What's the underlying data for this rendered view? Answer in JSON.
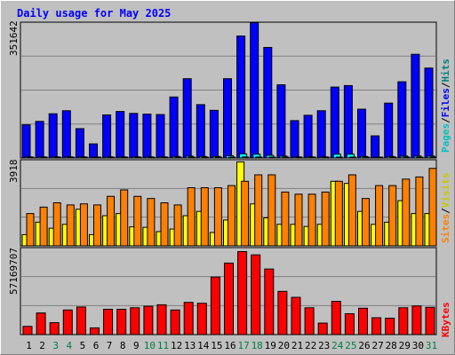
{
  "chart_data": [
    {
      "type": "bar",
      "title": "Daily usage for May 2025",
      "ylabel_parts": [
        "Pages",
        "Files",
        "Hits"
      ],
      "max_label": "351642",
      "ylim": [
        0,
        351642
      ],
      "categories": [
        "1",
        "2",
        "3",
        "4",
        "5",
        "6",
        "7",
        "8",
        "9",
        "10",
        "11",
        "12",
        "13",
        "14",
        "15",
        "16",
        "17",
        "18",
        "19",
        "20",
        "21",
        "22",
        "23",
        "24",
        "25",
        "26",
        "27",
        "28",
        "29",
        "30",
        "31"
      ],
      "weekend_days": [
        "3",
        "4",
        "10",
        "11",
        "17",
        "18",
        "24",
        "25",
        "31"
      ],
      "series": [
        {
          "name": "Hits",
          "color": "#0000ff",
          "values": [
            87000,
            96000,
            116000,
            124000,
            77000,
            37000,
            113000,
            122000,
            117000,
            115000,
            114000,
            160000,
            208000,
            140000,
            125000,
            208000,
            320000,
            355000,
            290000,
            192000,
            98000,
            112000,
            124000,
            186000,
            190000,
            128000,
            58000,
            144000,
            200000,
            272000,
            236000
          ]
        },
        {
          "name": "Files",
          "color": "#00ffff",
          "values": [
            3000,
            3000,
            3000,
            3000,
            3000,
            2000,
            3000,
            3000,
            3000,
            3000,
            3000,
            4000,
            5000,
            4000,
            4000,
            6000,
            11000,
            10000,
            7000,
            5000,
            3000,
            3000,
            3000,
            10000,
            10000,
            4000,
            2000,
            4000,
            5000,
            5000,
            5000
          ]
        },
        {
          "name": "Pages",
          "color": "#00c0c0",
          "values": [
            1000,
            1000,
            1000,
            1000,
            1000,
            500,
            1000,
            1000,
            1000,
            1000,
            1000,
            1000,
            1500,
            1000,
            1000,
            1500,
            2500,
            2500,
            2000,
            1500,
            1000,
            1000,
            1000,
            2000,
            2000,
            1000,
            500,
            1000,
            1500,
            1500,
            1500
          ]
        }
      ]
    },
    {
      "type": "bar",
      "ylabel_parts": [
        "Sites",
        "Visits"
      ],
      "max_label": "3918",
      "ylim": [
        0,
        3918
      ],
      "categories": [
        "1",
        "2",
        "3",
        "4",
        "5",
        "6",
        "7",
        "8",
        "9",
        "10",
        "11",
        "12",
        "13",
        "14",
        "15",
        "16",
        "17",
        "18",
        "19",
        "20",
        "21",
        "22",
        "23",
        "24",
        "25",
        "26",
        "27",
        "28",
        "29",
        "30",
        "31"
      ],
      "series": [
        {
          "name": "Visits",
          "color": "#ffff00",
          "values": [
            520,
            1100,
            820,
            1000,
            1700,
            520,
            1400,
            1500,
            880,
            860,
            660,
            780,
            1400,
            1600,
            620,
            1200,
            3900,
            1950,
            1300,
            1000,
            1000,
            900,
            1000,
            3000,
            2900,
            1600,
            1000,
            1100,
            2100,
            1500,
            1500
          ]
        },
        {
          "name": "Sites",
          "color": "#ff8000",
          "values": [
            1500,
            1800,
            2000,
            1900,
            1950,
            1900,
            2300,
            2600,
            2300,
            2200,
            2000,
            1900,
            2700,
            2700,
            2700,
            2800,
            3000,
            3300,
            3300,
            2500,
            2400,
            2400,
            2500,
            3000,
            3300,
            2200,
            2800,
            2800,
            3100,
            3200,
            3600
          ]
        }
      ]
    },
    {
      "type": "bar",
      "ylabel_parts": [
        "KBytes"
      ],
      "max_label": "57169707",
      "ylim": [
        0,
        57169707
      ],
      "categories": [
        "1",
        "2",
        "3",
        "4",
        "5",
        "6",
        "7",
        "8",
        "9",
        "10",
        "11",
        "12",
        "13",
        "14",
        "15",
        "16",
        "17",
        "18",
        "19",
        "20",
        "21",
        "22",
        "23",
        "24",
        "25",
        "26",
        "27",
        "28",
        "29",
        "30",
        "31"
      ],
      "series": [
        {
          "name": "KBytes",
          "color": "#ff0000",
          "values": [
            5500000,
            14500000,
            8000000,
            16500000,
            18500000,
            4500000,
            17000000,
            17000000,
            18000000,
            19000000,
            20000000,
            16500000,
            21600000,
            21000000,
            38600000,
            48000000,
            55700000,
            53500000,
            44000000,
            29000000,
            25000000,
            18000000,
            7700000,
            22300000,
            14000000,
            17700000,
            11300000,
            11000000,
            18000000,
            19200000,
            18300000
          ]
        }
      ]
    }
  ]
}
